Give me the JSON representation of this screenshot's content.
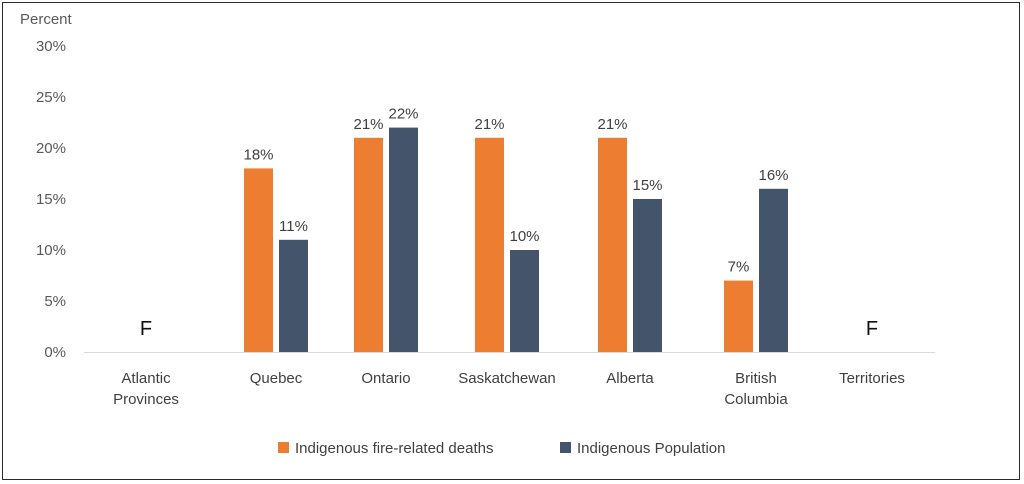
{
  "chart_data": {
    "type": "bar",
    "ylabel": "Percent",
    "ylim": [
      0,
      30
    ],
    "yticks": [
      "0%",
      "5%",
      "10%",
      "15%",
      "20%",
      "25%",
      "30%"
    ],
    "categories": [
      [
        "Atlantic",
        "Provinces"
      ],
      [
        "Quebec"
      ],
      [
        "Ontario"
      ],
      [
        "Saskatchewan"
      ],
      [
        "Alberta"
      ],
      [
        "British",
        "Columbia"
      ],
      [
        "Territories"
      ]
    ],
    "series": [
      {
        "name": "Indigenous fire-related deaths",
        "color": "#ED7D31",
        "values": [
          null,
          18,
          21,
          21,
          21,
          7,
          null
        ],
        "labels": [
          "F",
          "18%",
          "21%",
          "21%",
          "21%",
          "7%",
          "F"
        ]
      },
      {
        "name": "Indigenous Population",
        "color": "#44546A",
        "values": [
          null,
          11,
          22,
          10,
          15,
          16,
          null
        ],
        "labels": [
          "",
          "11%",
          "22%",
          "10%",
          "15%",
          "16%",
          ""
        ]
      }
    ],
    "grid": false,
    "legend": "bottom"
  }
}
